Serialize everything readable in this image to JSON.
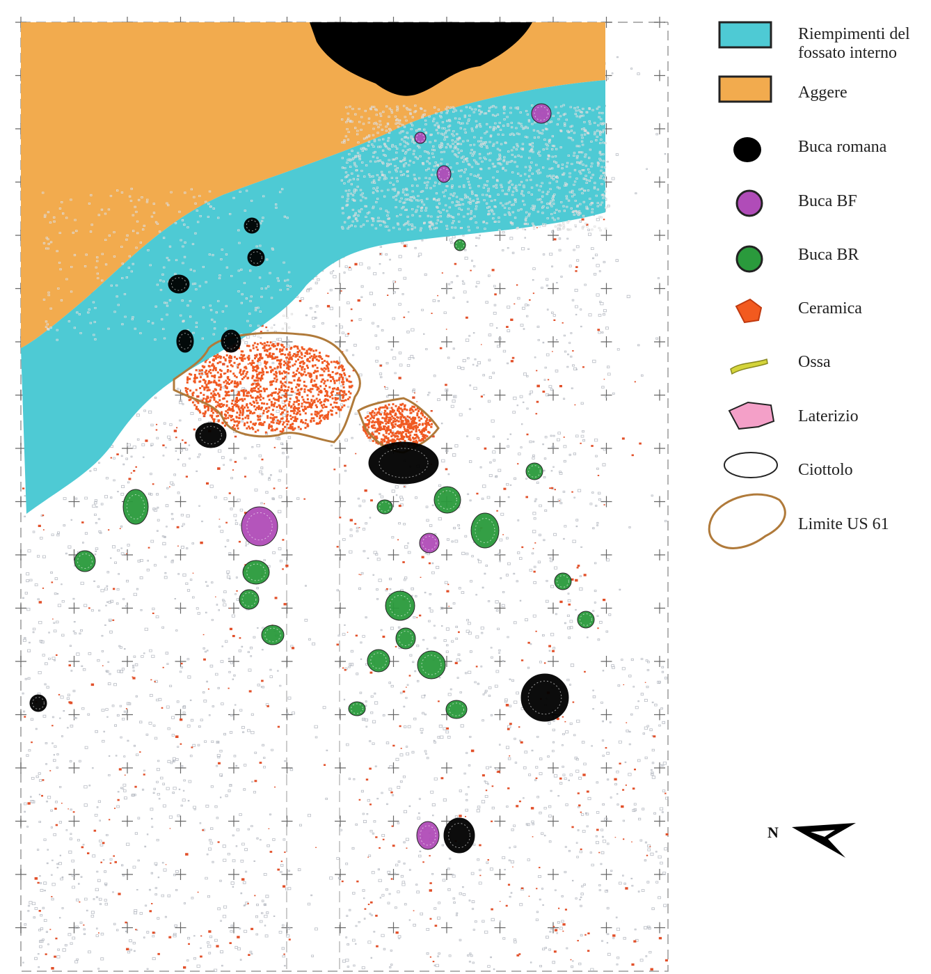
{
  "legend": [
    {
      "lines": [
        "Riempimenti del",
        "fossato interno"
      ]
    },
    {
      "lines": [
        "Aggere"
      ]
    },
    {
      "lines": [
        "Buca romana"
      ]
    },
    {
      "lines": [
        "Buca BF"
      ]
    },
    {
      "lines": [
        "Buca BR"
      ]
    },
    {
      "lines": [
        "Ceramica"
      ]
    },
    {
      "lines": [
        "Ossa"
      ]
    },
    {
      "lines": [
        "Laterizio"
      ]
    },
    {
      "lines": [
        "Ciottolo"
      ]
    },
    {
      "lines": [
        "Limite US 61"
      ]
    }
  ],
  "north": "N"
}
